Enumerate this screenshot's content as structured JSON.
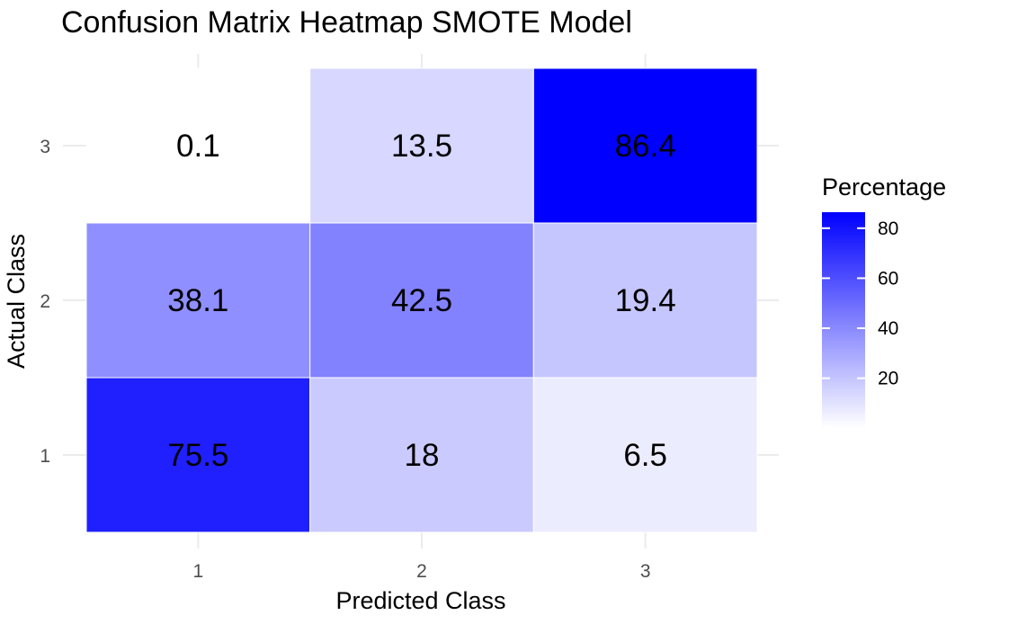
{
  "chart_data": {
    "type": "heatmap",
    "title": "Confusion Matrix Heatmap SMOTE Model",
    "xlabel": "Predicted Class",
    "ylabel": "Actual Class",
    "x_categories": [
      "1",
      "2",
      "3"
    ],
    "y_categories": [
      "1",
      "2",
      "3"
    ],
    "cells": [
      {
        "predicted": "1",
        "actual": "1",
        "value": 75.5,
        "label": "75.5"
      },
      {
        "predicted": "2",
        "actual": "1",
        "value": 18,
        "label": "18"
      },
      {
        "predicted": "3",
        "actual": "1",
        "value": 6.5,
        "label": "6.5"
      },
      {
        "predicted": "1",
        "actual": "2",
        "value": 38.1,
        "label": "38.1"
      },
      {
        "predicted": "2",
        "actual": "2",
        "value": 42.5,
        "label": "42.5"
      },
      {
        "predicted": "3",
        "actual": "2",
        "value": 19.4,
        "label": "19.4"
      },
      {
        "predicted": "1",
        "actual": "3",
        "value": 0.1,
        "label": "0.1"
      },
      {
        "predicted": "2",
        "actual": "3",
        "value": 13.5,
        "label": "13.5"
      },
      {
        "predicted": "3",
        "actual": "3",
        "value": 86.4,
        "label": "86.4"
      }
    ],
    "legend": {
      "title": "Percentage",
      "placement": "right",
      "low_color": "#ffffff",
      "high_color": "#0000ff",
      "range": [
        0.1,
        86.4
      ],
      "ticks": [
        20,
        40,
        60,
        80
      ]
    },
    "grid": true
  }
}
